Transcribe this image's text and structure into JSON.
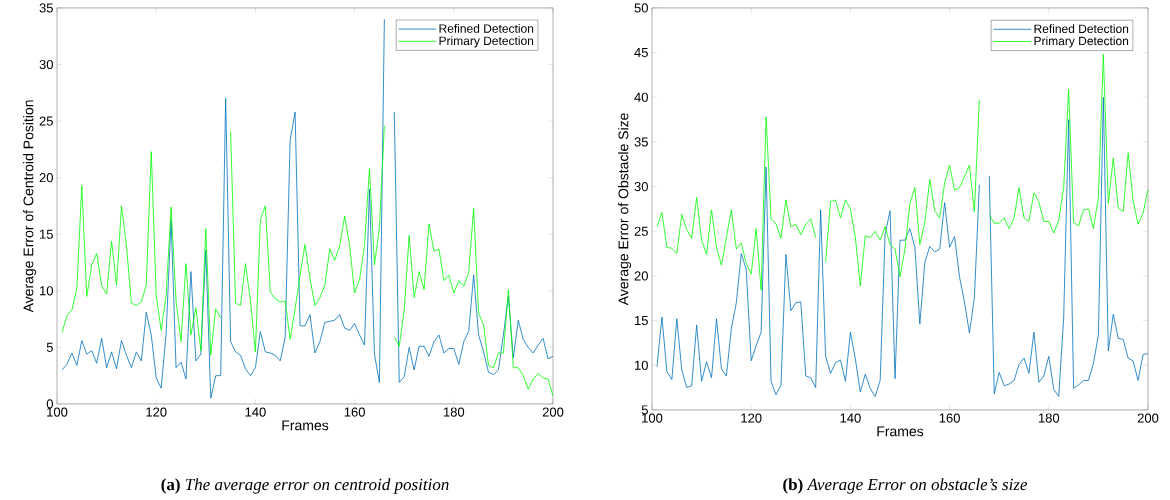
{
  "chart_data": [
    {
      "type": "line",
      "xlabel": "Frames",
      "ylabel": "Average Error of Centroid Position",
      "xlim": [
        100,
        200
      ],
      "ylim": [
        0,
        35
      ],
      "xticks": [
        100,
        120,
        140,
        160,
        180,
        200
      ],
      "yticks": [
        0,
        5,
        10,
        15,
        20,
        25,
        30,
        35
      ],
      "legend": "top right",
      "line_style": "solid",
      "x": [
        101,
        102,
        103,
        104,
        105,
        106,
        107,
        108,
        109,
        110,
        111,
        112,
        113,
        114,
        115,
        116,
        117,
        118,
        119,
        120,
        121,
        122,
        123,
        124,
        125,
        126,
        127,
        128,
        129,
        130,
        131,
        132,
        133,
        134,
        135,
        136,
        137,
        138,
        139,
        140,
        141,
        142,
        143,
        144,
        145,
        146,
        147,
        148,
        149,
        150,
        151,
        152,
        153,
        154,
        155,
        156,
        157,
        158,
        159,
        160,
        161,
        162,
        163,
        164,
        165,
        166,
        167,
        168,
        169,
        170,
        171,
        172,
        173,
        174,
        175,
        176,
        177,
        178,
        179,
        180,
        181,
        182,
        183,
        184,
        185,
        186,
        187,
        188,
        189,
        190,
        191,
        192,
        193,
        194,
        195,
        196,
        197,
        198,
        199,
        200
      ],
      "series": [
        {
          "name": "Refined Detection",
          "color": "#0072bd",
          "values": [
            3.0,
            3.5,
            4.5,
            3.4,
            5.6,
            4.4,
            4.7,
            3.6,
            5.8,
            3.2,
            4.6,
            3.1,
            5.6,
            4.3,
            3.2,
            4.6,
            3.8,
            8.1,
            6.1,
            2.3,
            1.4,
            6.2,
            16.3,
            3.2,
            3.7,
            2.2,
            11.7,
            3.8,
            4.4,
            13.6,
            0.5,
            2.5,
            2.5,
            27.0,
            5.5,
            4.6,
            4.3,
            3.1,
            2.5,
            3.2,
            6.4,
            4.6,
            4.5,
            4.3,
            3.8,
            5.9,
            23.3,
            25.8,
            6.9,
            6.9,
            7.9,
            4.5,
            5.5,
            7.2,
            7.3,
            7.4,
            7.9,
            6.7,
            6.5,
            7.1,
            6.1,
            5.2,
            19.0,
            4.4,
            1.9,
            34.0,
            null,
            25.8,
            1.9,
            2.4,
            5.0,
            3.0,
            5.1,
            5.1,
            4.2,
            5.5,
            6.1,
            4.5,
            4.9,
            4.9,
            3.5,
            5.5,
            6.4,
            11.4,
            6.1,
            4.6,
            2.8,
            2.6,
            3.0,
            6.1,
            9.5,
            4.1,
            7.4,
            5.7,
            5.0,
            4.5,
            5.2,
            5.8,
            4.0,
            4.2
          ]
        },
        {
          "name": "Primary Detection",
          "color": "#00ff00",
          "values": [
            6.3,
            7.8,
            8.3,
            10.2,
            19.3,
            9.5,
            12.3,
            13.3,
            10.5,
            9.7,
            14.4,
            10.5,
            17.5,
            14.0,
            8.9,
            8.7,
            9.0,
            10.5,
            22.3,
            9.6,
            6.5,
            9.6,
            17.4,
            9.1,
            5.5,
            12.4,
            6.1,
            8.5,
            4.7,
            15.5,
            4.3,
            8.4,
            7.6,
            null,
            24.1,
            8.9,
            8.7,
            12.4,
            9.1,
            4.6,
            16.3,
            17.5,
            9.9,
            9.3,
            9.0,
            9.1,
            5.7,
            8.4,
            11.4,
            14.1,
            11.1,
            8.7,
            9.4,
            10.5,
            13.7,
            12.7,
            14.0,
            16.6,
            14.0,
            9.8,
            11.0,
            14.0,
            20.8,
            12.3,
            15.6,
            24.6,
            null,
            5.9,
            5.1,
            8.3,
            14.9,
            9.4,
            11.7,
            10.1,
            15.9,
            13.5,
            13.7,
            10.9,
            11.4,
            9.8,
            10.9,
            10.4,
            11.6,
            17.3,
            8.0,
            7.0,
            3.4,
            3.2,
            4.5,
            4.5,
            10.1,
            3.2,
            3.2,
            2.5,
            1.3,
            2.2,
            2.7,
            2.3,
            2.2,
            0.7
          ]
        }
      ],
      "annotations": [
        "**(a)** *The average error on centroid position*"
      ]
    },
    {
      "type": "line",
      "xlabel": "Frames",
      "ylabel": "Average Error of Obstacle Size",
      "xlim": [
        100,
        200
      ],
      "ylim": [
        5,
        50
      ],
      "xticks": [
        100,
        120,
        140,
        160,
        180,
        200
      ],
      "yticks": [
        5,
        10,
        15,
        20,
        25,
        30,
        35,
        40,
        45,
        50
      ],
      "legend": "top right",
      "line_style": "solid",
      "x": [
        101,
        102,
        103,
        104,
        105,
        106,
        107,
        108,
        109,
        110,
        111,
        112,
        113,
        114,
        115,
        116,
        117,
        118,
        119,
        120,
        121,
        122,
        123,
        124,
        125,
        126,
        127,
        128,
        129,
        130,
        131,
        132,
        133,
        134,
        135,
        136,
        137,
        138,
        139,
        140,
        141,
        142,
        143,
        144,
        145,
        146,
        147,
        148,
        149,
        150,
        151,
        152,
        153,
        154,
        155,
        156,
        157,
        158,
        159,
        160,
        161,
        162,
        163,
        164,
        165,
        166,
        167,
        168,
        169,
        170,
        171,
        172,
        173,
        174,
        175,
        176,
        177,
        178,
        179,
        180,
        181,
        182,
        183,
        184,
        185,
        186,
        187,
        188,
        189,
        190,
        191,
        192,
        193,
        194,
        195,
        196,
        197,
        198,
        199,
        200
      ],
      "series": [
        {
          "name": "Refined Detection",
          "color": "#0072bd",
          "values": [
            9.8,
            15.4,
            9.3,
            8.4,
            15.2,
            9.5,
            7.5,
            7.7,
            14.5,
            8.2,
            10.4,
            8.6,
            15.2,
            9.6,
            8.8,
            14.1,
            17.0,
            22.5,
            20.7,
            10.5,
            12.2,
            13.7,
            32.2,
            8.2,
            6.7,
            7.8,
            22.4,
            16.1,
            17.0,
            17.1,
            8.8,
            8.6,
            7.5,
            27.4,
            11.0,
            9.1,
            10.3,
            10.6,
            8.2,
            13.7,
            10.7,
            7.0,
            9.0,
            7.4,
            6.5,
            8.3,
            24.7,
            27.3,
            8.5,
            24.0,
            24.0,
            25.3,
            23.2,
            14.6,
            21.5,
            23.3,
            22.7,
            23.0,
            28.2,
            23.2,
            24.4,
            19.9,
            17.1,
            13.6,
            17.6,
            30.2,
            null,
            31.2,
            6.8,
            9.2,
            7.7,
            7.9,
            8.3,
            10.1,
            10.8,
            9.1,
            13.7,
            8.1,
            8.8,
            11.0,
            7.3,
            6.5,
            15.3,
            37.5,
            7.4,
            7.8,
            8.3,
            8.3,
            10.2,
            13.4,
            40.0,
            11.6,
            15.7,
            13.0,
            12.9,
            10.8,
            10.5,
            8.3,
            11.2,
            11.3
          ]
        },
        {
          "name": "Primary Detection",
          "color": "#00ff00",
          "values": [
            25.5,
            27.1,
            23.2,
            23.1,
            22.5,
            26.9,
            25.2,
            24.2,
            28.8,
            24.0,
            22.4,
            27.4,
            23.2,
            21.2,
            24.3,
            27.4,
            23.0,
            23.7,
            21.4,
            20.2,
            25.3,
            18.4,
            37.8,
            26.4,
            25.8,
            24.2,
            28.5,
            25.5,
            25.8,
            24.6,
            25.8,
            26.4,
            24.3,
            null,
            21.6,
            28.3,
            28.5,
            26.5,
            28.5,
            27.5,
            24.3,
            18.9,
            24.5,
            24.3,
            25.0,
            24.0,
            25.5,
            23.5,
            23.0,
            19.9,
            23.0,
            28.1,
            29.9,
            23.5,
            26.0,
            30.8,
            27.3,
            26.5,
            30.4,
            32.4,
            29.6,
            29.9,
            31.1,
            32.4,
            27.2,
            39.7,
            null,
            26.8,
            25.9,
            25.9,
            26.5,
            25.3,
            26.5,
            29.9,
            26.5,
            26.1,
            29.3,
            28.3,
            26.1,
            26.1,
            24.8,
            26.2,
            29.9,
            40.9,
            26.0,
            25.6,
            27.4,
            27.5,
            25.3,
            28.8,
            44.8,
            28.1,
            33.2,
            27.6,
            27.2,
            33.8,
            28.4,
            25.8,
            27.0,
            29.7
          ]
        }
      ],
      "annotations": [
        "**(b)** *Average Error on obstacle’s size*"
      ]
    }
  ]
}
